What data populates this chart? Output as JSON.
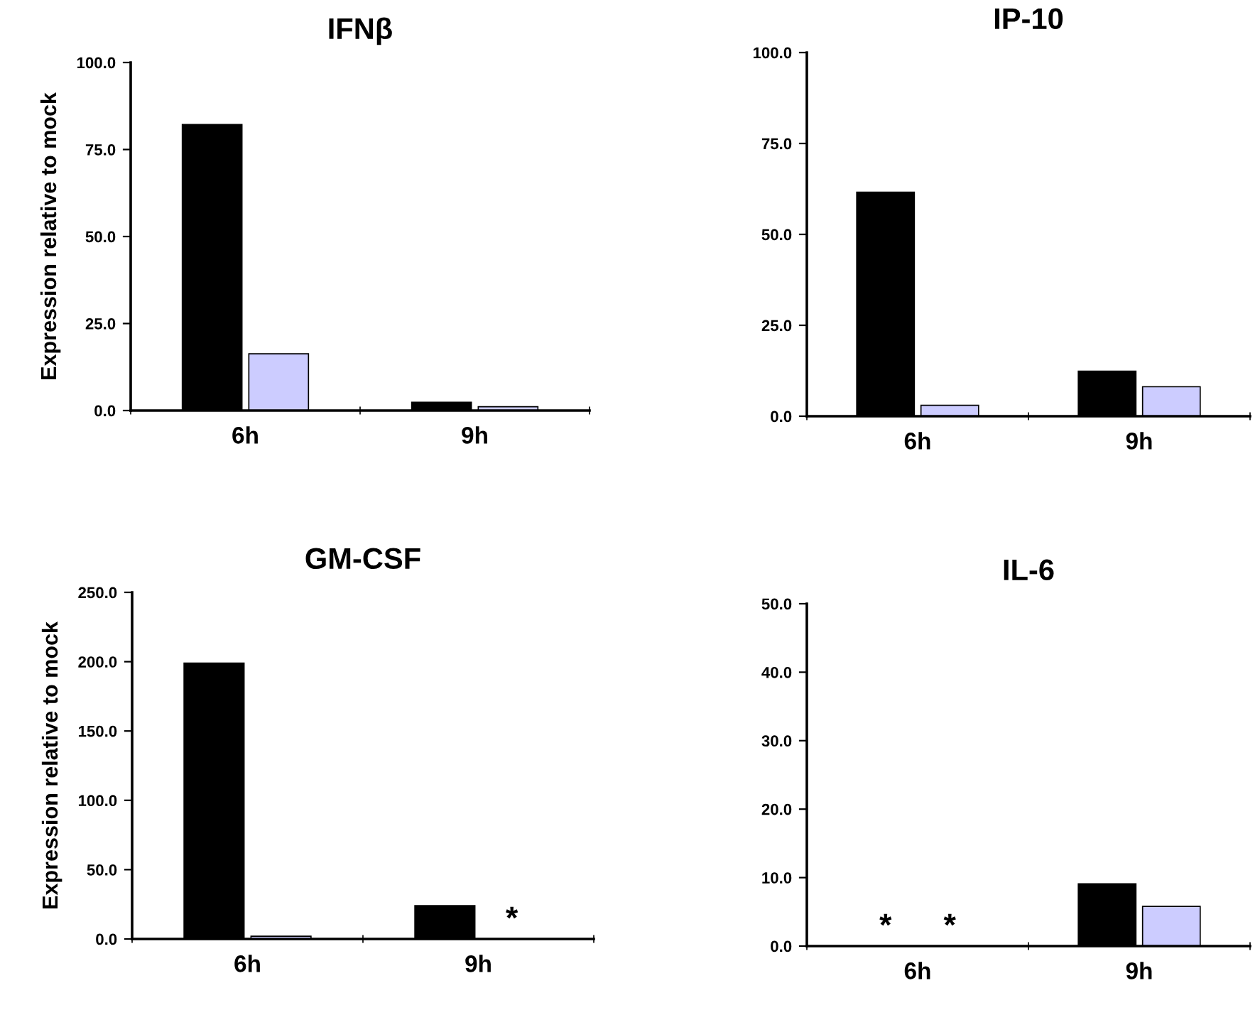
{
  "chart_data": [
    {
      "type": "bar",
      "title": "IFNβ",
      "ylabel": "Expression relative to mock",
      "categories": [
        "6h",
        "9h"
      ],
      "series": [
        {
          "color": "#000000",
          "values": [
            82.2,
            2.4
          ]
        },
        {
          "color": "#ccccff",
          "values": [
            16.3,
            1.1
          ]
        }
      ],
      "ylim": [
        0,
        100
      ],
      "yticks": [
        {
          "value": 0,
          "label": "0.0"
        },
        {
          "value": 25,
          "label": "25.0"
        },
        {
          "value": 50,
          "label": "50.0"
        },
        {
          "value": 75,
          "label": "75.0"
        },
        {
          "value": 100,
          "label": "100.0"
        }
      ]
    },
    {
      "type": "bar",
      "title": "IP-10",
      "categories": [
        "6h",
        "9h"
      ],
      "series": [
        {
          "color": "#000000",
          "values": [
            61.6,
            12.4
          ]
        },
        {
          "color": "#ccccff",
          "values": [
            3.0,
            8.1
          ]
        }
      ],
      "ylim": [
        0,
        100
      ],
      "yticks": [
        {
          "value": 0,
          "label": "0.0"
        },
        {
          "value": 25,
          "label": "25.0"
        },
        {
          "value": 50,
          "label": "50.0"
        },
        {
          "value": 75,
          "label": "75.0"
        },
        {
          "value": 100,
          "label": "100.0"
        }
      ]
    },
    {
      "type": "bar",
      "title": "GM-CSF",
      "ylabel": "Expression relative to mock",
      "categories": [
        "6h",
        "9h"
      ],
      "series": [
        {
          "color": "#000000",
          "values": [
            199,
            24
          ]
        },
        {
          "color": "#ccccff",
          "values": [
            2,
            null
          ]
        }
      ],
      "ylim": [
        0,
        250
      ],
      "yticks": [
        {
          "value": 0,
          "label": "0.0"
        },
        {
          "value": 50,
          "label": "50.0"
        },
        {
          "value": 100,
          "label": "100.0"
        },
        {
          "value": 150,
          "label": "150.0"
        },
        {
          "value": 200,
          "label": "200.0"
        },
        {
          "value": 250,
          "label": "250.0"
        }
      ],
      "annotations": [
        "*"
      ]
    },
    {
      "type": "bar",
      "title": "IL-6",
      "categories": [
        "6h",
        "9h"
      ],
      "series": [
        {
          "color": "#000000",
          "values": [
            null,
            9.1
          ]
        },
        {
          "color": "#ccccff",
          "values": [
            null,
            5.8
          ]
        }
      ],
      "ylim": [
        0,
        50
      ],
      "yticks": [
        {
          "value": 0,
          "label": "0.0"
        },
        {
          "value": 10,
          "label": "10.0"
        },
        {
          "value": 20,
          "label": "20.0"
        },
        {
          "value": 30,
          "label": "30.0"
        },
        {
          "value": 40,
          "label": "40.0"
        },
        {
          "value": 50,
          "label": "50.0"
        }
      ],
      "annotations": [
        "*",
        "*"
      ]
    }
  ]
}
